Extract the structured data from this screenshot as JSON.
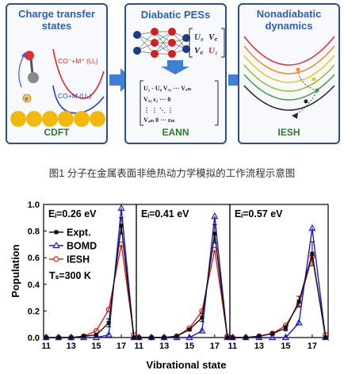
{
  "fig1": {
    "panels": [
      {
        "title_line1": "Charge transfer",
        "title_line2": "states",
        "label": "CDFT",
        "curve_upper": "CO⁻+M⁺ (U₁)",
        "curve_lower": "CO+M (U₀)"
      },
      {
        "title": "Diabatic PESs",
        "label": "EANN",
        "matrix_small": {
          "r1": [
            "U₀",
            "V꜀"
          ],
          "r2": [
            "V꜀",
            "U₁"
          ]
        },
        "matrix_big": {
          "r1": "U₁ - U₀ Vₐ₁ ··· Vₐₘ",
          "r2": "Vₐ₁     ε₁ ··· 0",
          "r3": "⋮        ⋮  ⋱  ⋮",
          "r4": "Vₐₘ     0 ··· εₘ"
        }
      },
      {
        "title_line1": "Nonadiabatic",
        "title_line2": "dynamics",
        "label": "IESH"
      }
    ],
    "colors": {
      "border": "#2b4f8f",
      "title": "#2d5fb4",
      "label": "#2d7a2d",
      "arrow": "#3f7fd6",
      "gold": "#f2b90c"
    },
    "caption": "图1 分子在金属表面非绝热动力学模拟的工作流程示意图"
  },
  "chart_data": [
    {
      "type": "line",
      "title": "Eᵢ=0.26 eV",
      "x": [
        11,
        12,
        13,
        14,
        15,
        16,
        17,
        18
      ],
      "series": [
        {
          "name": "Expt.",
          "color": "#111111",
          "marker": "square",
          "values": [
            0.0,
            0.0,
            0.0,
            0.01,
            0.02,
            0.11,
            0.84,
            0.0
          ],
          "errors": [
            0,
            0,
            0,
            0.01,
            0.01,
            0.03,
            0.06,
            0
          ]
        },
        {
          "name": "BOMD",
          "color": "#1a1ad6",
          "marker": "triangle",
          "values": [
            0.0,
            0.0,
            0.0,
            0.0,
            0.0,
            0.02,
            0.97,
            0.0
          ]
        },
        {
          "name": "IESH",
          "color": "#e02020",
          "marker": "circle",
          "values": [
            0.0,
            0.0,
            0.0,
            0.01,
            0.05,
            0.21,
            0.7,
            0.02
          ]
        }
      ]
    },
    {
      "type": "line",
      "title": "Eᵢ=0.41 eV",
      "x": [
        11,
        12,
        13,
        14,
        15,
        16,
        17,
        18
      ],
      "series": [
        {
          "name": "Expt.",
          "color": "#111111",
          "marker": "square",
          "values": [
            0.0,
            0.0,
            0.0,
            0.01,
            0.06,
            0.15,
            0.78,
            0.0
          ],
          "errors": [
            0,
            0,
            0,
            0,
            0.01,
            0.03,
            0.07,
            0
          ]
        },
        {
          "name": "BOMD",
          "color": "#1a1ad6",
          "marker": "triangle",
          "values": [
            0.0,
            0.0,
            0.0,
            0.0,
            0.0,
            0.05,
            0.91,
            0.0
          ]
        },
        {
          "name": "IESH",
          "color": "#e02020",
          "marker": "circle",
          "values": [
            0.0,
            0.0,
            0.0,
            0.01,
            0.07,
            0.2,
            0.66,
            0.01
          ]
        }
      ]
    },
    {
      "type": "line",
      "title": "Eᵢ=0.57 eV",
      "x": [
        11,
        12,
        13,
        14,
        15,
        16,
        17,
        18
      ],
      "series": [
        {
          "name": "Expt.",
          "color": "#111111",
          "marker": "square",
          "values": [
            0.0,
            0.0,
            0.01,
            0.03,
            0.07,
            0.27,
            0.63,
            0.0
          ],
          "errors": [
            0,
            0,
            0,
            0.01,
            0.02,
            0.04,
            0.09,
            0
          ]
        },
        {
          "name": "BOMD",
          "color": "#1a1ad6",
          "marker": "triangle",
          "values": [
            0.0,
            0.0,
            0.0,
            0.0,
            0.0,
            0.11,
            0.82,
            0.0
          ]
        },
        {
          "name": "IESH",
          "color": "#e02020",
          "marker": "circle",
          "values": [
            0.0,
            0.0,
            0.01,
            0.03,
            0.09,
            0.25,
            0.61,
            0.02
          ]
        }
      ]
    }
  ],
  "chart_common": {
    "ylabel": "Population",
    "xlabel": "Vibrational state",
    "ylim": [
      0.0,
      1.0
    ],
    "xlim": [
      10.8,
      18.2
    ],
    "yticks": [
      "0.0",
      "0.2",
      "0.4",
      "0.6",
      "0.8",
      "1.0"
    ],
    "xticks": [
      "11",
      "13",
      "15",
      "17"
    ],
    "legend": [
      "Expt.",
      "BOMD",
      "IESH"
    ],
    "surface_temp": "Tₛ=300 K"
  }
}
